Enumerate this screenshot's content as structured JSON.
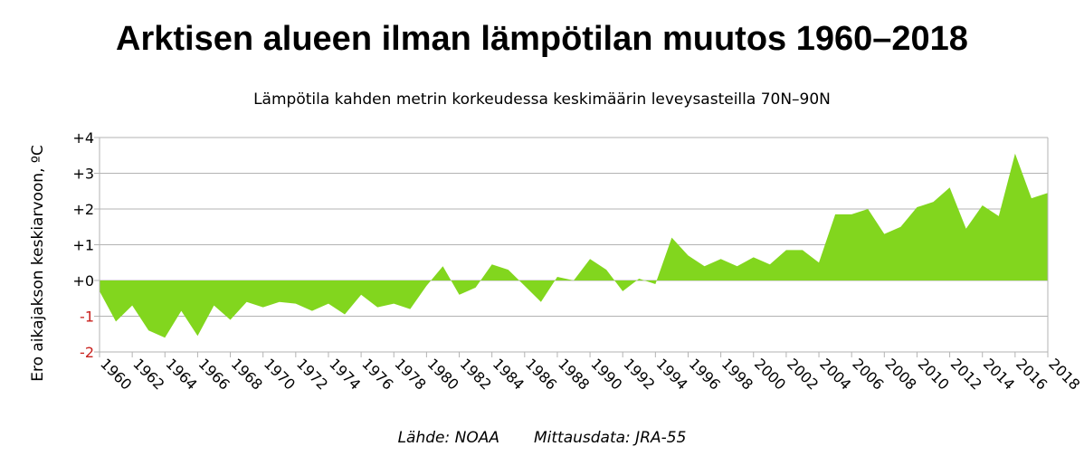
{
  "title": "Arktisen alueen ilman lämpötilan muutos 1960–2018",
  "subtitle": "Lämpötila kahden metrin korkeudessa keskimäärin leveysasteilla 70N–90N",
  "ylabel": "Ero aikajakson keskiarvoon, ºC",
  "source_label": "Lähde: NOAA",
  "measurement_label": "Mittausdata: JRA-55",
  "colors": {
    "area": "#82d61e",
    "grid": "#b3b3b3",
    "negative_tick": "#c9211e",
    "text": "#000000"
  },
  "chart_data": {
    "type": "area",
    "title": "Arktisen alueen ilman lämpötilan muutos 1960–2018",
    "subtitle": "Lämpötila kahden metrin korkeudessa keskimäärin leveysasteilla 70N–90N",
    "xlabel": "",
    "ylabel": "Ero aikajakson keskiarvoon, ºC",
    "ylim": [
      -2,
      4
    ],
    "y_ticks": [
      {
        "value": 4,
        "label": "+4"
      },
      {
        "value": 3,
        "label": "+3"
      },
      {
        "value": 2,
        "label": "+2"
      },
      {
        "value": 1,
        "label": "+1"
      },
      {
        "value": 0,
        "label": "+0"
      },
      {
        "value": -1,
        "label": "-1"
      },
      {
        "value": -2,
        "label": "-2"
      }
    ],
    "x_tick_labels": [
      "1960",
      "1962",
      "1964",
      "1966",
      "1968",
      "1970",
      "1972",
      "1974",
      "1976",
      "1978",
      "1980",
      "1982",
      "1984",
      "1986",
      "1988",
      "1990",
      "1992",
      "1994",
      "1996",
      "1998",
      "2000",
      "2002",
      "2004",
      "2006",
      "2008",
      "2010",
      "2012",
      "2014",
      "2016",
      "2018"
    ],
    "grid": true,
    "series": [
      {
        "x": [
          1960,
          1961,
          1962,
          1963,
          1964,
          1965,
          1966,
          1967,
          1968,
          1969,
          1970,
          1971,
          1972,
          1973,
          1974,
          1975,
          1976,
          1977,
          1978,
          1979,
          1980,
          1981,
          1982,
          1983,
          1984,
          1985,
          1986,
          1987,
          1988,
          1989,
          1990,
          1991,
          1992,
          1993,
          1994,
          1995,
          1996,
          1997,
          1998,
          1999,
          2000,
          2001,
          2002,
          2003,
          2004,
          2005,
          2006,
          2007,
          2008,
          2009,
          2010,
          2011,
          2012,
          2013,
          2014,
          2015,
          2016,
          2017,
          2018
        ],
        "values": [
          -0.3,
          -1.15,
          -0.7,
          -1.4,
          -1.6,
          -0.85,
          -1.55,
          -0.7,
          -1.1,
          -0.6,
          -0.75,
          -0.6,
          -0.65,
          -0.85,
          -0.65,
          -0.95,
          -0.4,
          -0.75,
          -0.65,
          -0.8,
          -0.15,
          0.4,
          -0.4,
          -0.2,
          0.45,
          0.3,
          -0.15,
          -0.6,
          0.1,
          0.0,
          0.6,
          0.3,
          -0.3,
          0.05,
          -0.1,
          1.2,
          0.7,
          0.4,
          0.6,
          0.4,
          0.65,
          0.45,
          0.85,
          0.85,
          0.5,
          1.85,
          1.85,
          2.0,
          1.3,
          1.5,
          2.05,
          2.2,
          2.6,
          1.45,
          2.1,
          1.8,
          3.55,
          2.3,
          2.45
        ]
      }
    ]
  }
}
